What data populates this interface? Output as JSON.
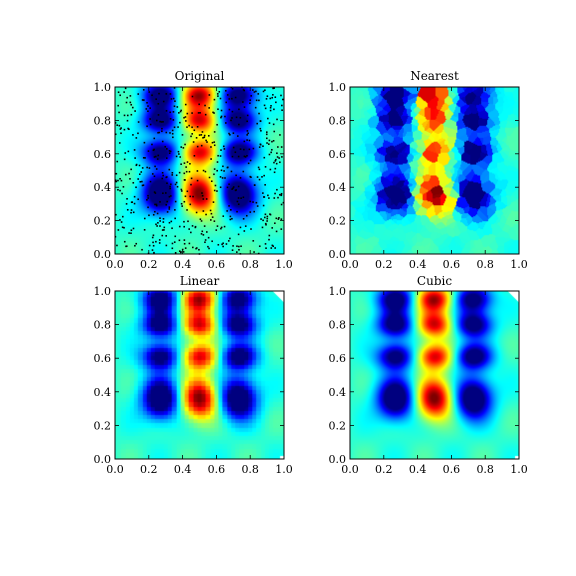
{
  "figure": {
    "background": "#ffffff"
  },
  "colormap": {
    "name": "jet",
    "stops": [
      "#00007f",
      "#0000ff",
      "#007fff",
      "#00ffff",
      "#7fff7f",
      "#ffff00",
      "#ff7f00",
      "#ff0000",
      "#7f0000"
    ]
  },
  "chart_data": [
    {
      "type": "heatmap",
      "title": "Original",
      "xlim": [
        0,
        1
      ],
      "ylim": [
        0,
        1
      ],
      "xticks": [
        "0.0",
        "0.2",
        "0.4",
        "0.6",
        "0.8",
        "1.0"
      ],
      "yticks": [
        "0.0",
        "0.2",
        "0.4",
        "0.6",
        "0.8",
        "1.0"
      ],
      "rendering": "smooth field with scattered sample points",
      "sample_points": true,
      "field": {
        "background_level": 0.42,
        "blobs": [
          {
            "x": 0.27,
            "y": 0.95,
            "w": -0.5
          },
          {
            "x": 0.5,
            "y": 0.95,
            "w": 0.55
          },
          {
            "x": 0.73,
            "y": 0.95,
            "w": -0.5
          },
          {
            "x": 0.27,
            "y": 0.8,
            "w": -0.5
          },
          {
            "x": 0.5,
            "y": 0.8,
            "w": 0.5
          },
          {
            "x": 0.73,
            "y": 0.8,
            "w": -0.5
          },
          {
            "x": 0.27,
            "y": 0.61,
            "w": -0.5
          },
          {
            "x": 0.5,
            "y": 0.61,
            "w": 0.5
          },
          {
            "x": 0.73,
            "y": 0.61,
            "w": -0.5
          },
          {
            "x": 0.27,
            "y": 0.36,
            "w": -0.6
          },
          {
            "x": 0.5,
            "y": 0.36,
            "w": 0.6
          },
          {
            "x": 0.73,
            "y": 0.36,
            "w": -0.6
          }
        ]
      }
    },
    {
      "type": "heatmap",
      "title": "Nearest",
      "xlim": [
        0,
        1
      ],
      "ylim": [
        0,
        1
      ],
      "xticks": [
        "0.0",
        "0.2",
        "0.4",
        "0.6",
        "0.8",
        "1.0"
      ],
      "yticks": [
        "0.0",
        "0.2",
        "0.4",
        "0.6",
        "0.8",
        "1.0"
      ],
      "rendering": "nearest-neighbour interpolation (Voronoi patches)",
      "sample_points": false
    },
    {
      "type": "heatmap",
      "title": "Linear",
      "xlim": [
        0,
        1
      ],
      "ylim": [
        0,
        1
      ],
      "xticks": [
        "0.0",
        "0.2",
        "0.4",
        "0.6",
        "0.8",
        "1.0"
      ],
      "yticks": [
        "0.0",
        "0.2",
        "0.4",
        "0.6",
        "0.8",
        "1.0"
      ],
      "rendering": "linear interpolation, uncovered top-right corner left blank",
      "sample_points": false
    },
    {
      "type": "heatmap",
      "title": "Cubic",
      "xlim": [
        0,
        1
      ],
      "ylim": [
        0,
        1
      ],
      "xticks": [
        "0.0",
        "0.2",
        "0.4",
        "0.6",
        "0.8",
        "1.0"
      ],
      "yticks": [
        "0.0",
        "0.2",
        "0.4",
        "0.6",
        "0.8",
        "1.0"
      ],
      "rendering": "cubic interpolation, uncovered top-right corner left blank",
      "sample_points": false
    }
  ]
}
